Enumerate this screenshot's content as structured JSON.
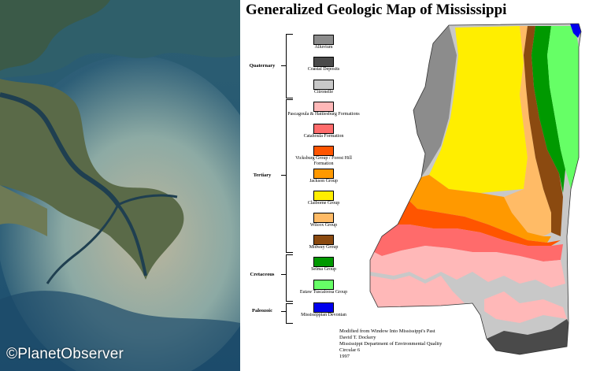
{
  "watermark": "©PlanetObserver",
  "map": {
    "title": "Generalized Geologic Map of Mississippi",
    "periods": [
      {
        "name": "Quaternary"
      },
      {
        "name": "Tertiary"
      },
      {
        "name": "Cretaceous"
      },
      {
        "name": "Paleozoic"
      }
    ],
    "units": [
      {
        "label": "Alluvium",
        "color": "#8c8c8c"
      },
      {
        "label": "Coastal Deposits",
        "color": "#4a4a4a"
      },
      {
        "label": "Citronelle",
        "color": "#c8c8c8"
      },
      {
        "label": "Pascagoula & Hattiesburg Formations",
        "color": "#ffb8b8"
      },
      {
        "label": "Catahoula Formation",
        "color": "#ff6b6b"
      },
      {
        "label": "Vicksburg Group / Forest Hill Formation",
        "color": "#ff5500"
      },
      {
        "label": "Jackson Group",
        "color": "#ff9900"
      },
      {
        "label": "Claiborne Group",
        "color": "#ffee00"
      },
      {
        "label": "Wilcox Group",
        "color": "#ffbb66"
      },
      {
        "label": "Midway Group",
        "color": "#8b4a10"
      },
      {
        "label": "Selma Group",
        "color": "#009900"
      },
      {
        "label": "Eutaw Tuscaloosa Group",
        "color": "#66ff66"
      },
      {
        "label": "Mississippian Devonian",
        "color": "#0000ee"
      }
    ],
    "credit": [
      "Modified from Window Into Mississippi's Past",
      "David T. Dockery",
      "Mississippi Department of Environmental Quality",
      "Circular 6",
      "1997"
    ]
  }
}
